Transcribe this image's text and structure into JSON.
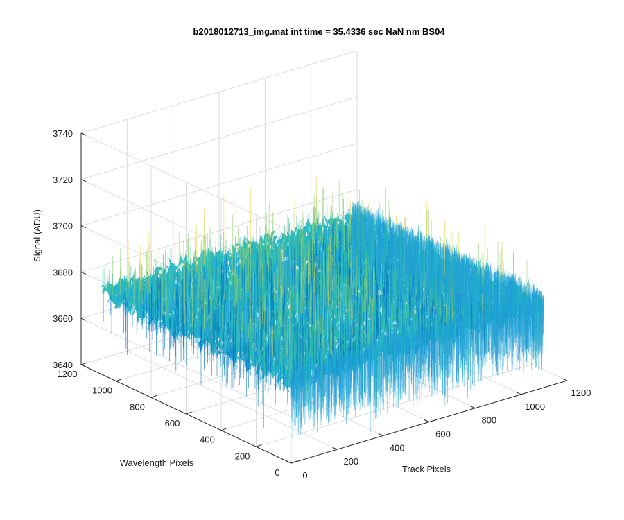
{
  "figure": {
    "title": "b2018012713_img.mat int time = 35.4336 sec  NaN nm BS04"
  },
  "chart_data": {
    "type": "surface",
    "title": "b2018012713_img.mat int time = 35.4336 sec  NaN nm BS04",
    "xlabel": "Track Pixels",
    "ylabel": "Wavelength Pixels",
    "zlabel": "Signal (ADU)",
    "xlim": [
      0,
      1200
    ],
    "ylim": [
      0,
      1200
    ],
    "zlim": [
      3640,
      3740
    ],
    "x_ticks": [
      "0",
      "200",
      "400",
      "600",
      "800",
      "1000",
      "1200"
    ],
    "y_ticks": [
      "0",
      "200",
      "400",
      "600",
      "800",
      "1000",
      "1200"
    ],
    "z_ticks": [
      "3640",
      "3660",
      "3680",
      "3700",
      "3720",
      "3740"
    ],
    "x_tick_values": [
      0,
      200,
      400,
      600,
      800,
      1000,
      1200
    ],
    "y_tick_values": [
      0,
      200,
      400,
      600,
      800,
      1000,
      1200
    ],
    "z_tick_values": [
      3640,
      3660,
      3680,
      3700,
      3720,
      3740
    ],
    "data_extent": {
      "x": [
        0,
        1100
      ],
      "y": [
        0,
        1100
      ]
    },
    "signal_mean": 3675,
    "signal_spread": 8,
    "colormap": [
      "#0072bd",
      "#1f9fd8",
      "#26b5c4",
      "#3cc3a0",
      "#8fcf74",
      "#e8d24a"
    ],
    "grid": true,
    "view": "3d"
  }
}
